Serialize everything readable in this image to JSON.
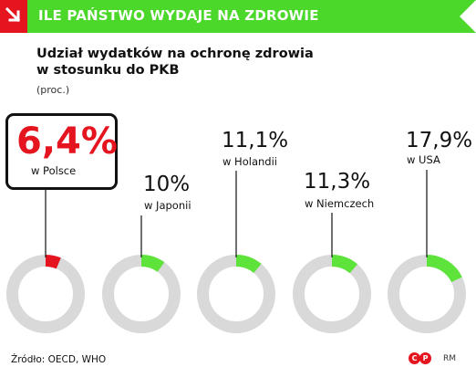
{
  "header": {
    "title": "ILE PAŃSTWO WYDAJE NA ZDROWIE"
  },
  "subtitle": {
    "line1": "Udział wydatków na ochronę zdrowia",
    "line2": "w stosunku do PKB",
    "unit": "(proc.)"
  },
  "chart_data": {
    "type": "pie",
    "title": "Udział wydatków na ochronę zdrowia w stosunku do PKB",
    "unit": "(proc.)",
    "items": [
      {
        "label": "w Polsce",
        "value": 6.4,
        "value_text": "6,4%",
        "color": "#e4151f",
        "highlight": true
      },
      {
        "label": "w Japonii",
        "value": 10,
        "value_text": "10%",
        "color": "#5de33a",
        "highlight": false
      },
      {
        "label": "w Holandii",
        "value": 11.1,
        "value_text": "11,1%",
        "color": "#5de33a",
        "highlight": false
      },
      {
        "label": "w Niemczech",
        "value": 11.3,
        "value_text": "11,3%",
        "color": "#5de33a",
        "highlight": false
      },
      {
        "label": "w USA",
        "value": 17.9,
        "value_text": "17,9%",
        "color": "#5de33a",
        "highlight": false
      }
    ],
    "remainder_color": "#d9d9d9"
  },
  "footer": {
    "source": "Źródło: OECD, WHO",
    "logo_text": "RM",
    "logo_mark": "CP"
  },
  "colors": {
    "banner": "#4cd82b",
    "accent_red": "#e4151f",
    "ring_grey": "#d9d9d9"
  }
}
